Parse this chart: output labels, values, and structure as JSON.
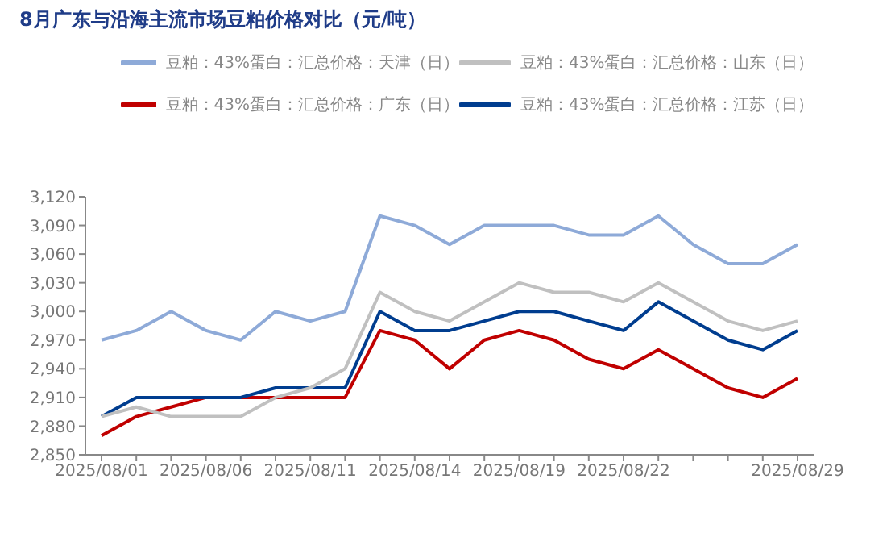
{
  "chart_data": {
    "type": "line",
    "title": "8月广东与沿海主流市场豆粕价格对比（元/吨）",
    "categories": [
      "2025/08/01",
      null,
      null,
      "2025/08/06",
      null,
      null,
      "2025/08/11",
      null,
      null,
      "2025/08/14",
      null,
      null,
      "2025/08/19",
      null,
      null,
      "2025/08/22",
      null,
      null,
      null,
      null,
      "2025/08/29"
    ],
    "series": [
      {
        "name": "豆粕：43%蛋白：汇总价格：广东（日）",
        "color": "#c00000",
        "values": [
          2870,
          2890,
          2900,
          2910,
          2910,
          2910,
          2910,
          2910,
          2980,
          2970,
          2940,
          2970,
          2980,
          2970,
          2950,
          2940,
          2960,
          2940,
          2920,
          2910,
          2930
        ]
      },
      {
        "name": "豆粕：43%蛋白：汇总价格：江苏（日）",
        "color": "#003d8f",
        "values": [
          2890,
          2910,
          2910,
          2910,
          2910,
          2920,
          2920,
          2920,
          3000,
          2980,
          2980,
          2990,
          3000,
          3000,
          2990,
          2980,
          3010,
          2990,
          2970,
          2960,
          2980
        ]
      },
      {
        "name": "豆粕：43%蛋白：汇总价格：山东（日）",
        "color": "#c0c0c0",
        "values": [
          2890,
          2900,
          2890,
          2890,
          2890,
          2910,
          2920,
          2940,
          3020,
          3000,
          2990,
          3010,
          3030,
          3020,
          3020,
          3010,
          3030,
          3010,
          2990,
          2980,
          2990
        ]
      },
      {
        "name": "豆粕：43%蛋白：汇总价格：天津（日）",
        "color": "#8eaad8",
        "values": [
          2970,
          2980,
          3000,
          2980,
          2970,
          3000,
          2990,
          3000,
          3100,
          3090,
          3070,
          3090,
          3090,
          3090,
          3080,
          3080,
          3100,
          3070,
          3050,
          3050,
          3070
        ]
      }
    ],
    "ylim": [
      2850,
      3120
    ],
    "yticks": [
      {
        "value": 2850,
        "label": "2,850"
      },
      {
        "value": 2880,
        "label": "2,880"
      },
      {
        "value": 2910,
        "label": "2,910"
      },
      {
        "value": 2940,
        "label": "2,940"
      },
      {
        "value": 2970,
        "label": "2,970"
      },
      {
        "value": 3000,
        "label": "3,000"
      },
      {
        "value": 3030,
        "label": "3,030"
      },
      {
        "value": 3060,
        "label": "3,060"
      },
      {
        "value": 3090,
        "label": "3,090"
      },
      {
        "value": 3120,
        "label": "3,120"
      }
    ],
    "grid": false,
    "legend": "top",
    "marker": "none",
    "line_style": "solid"
  }
}
